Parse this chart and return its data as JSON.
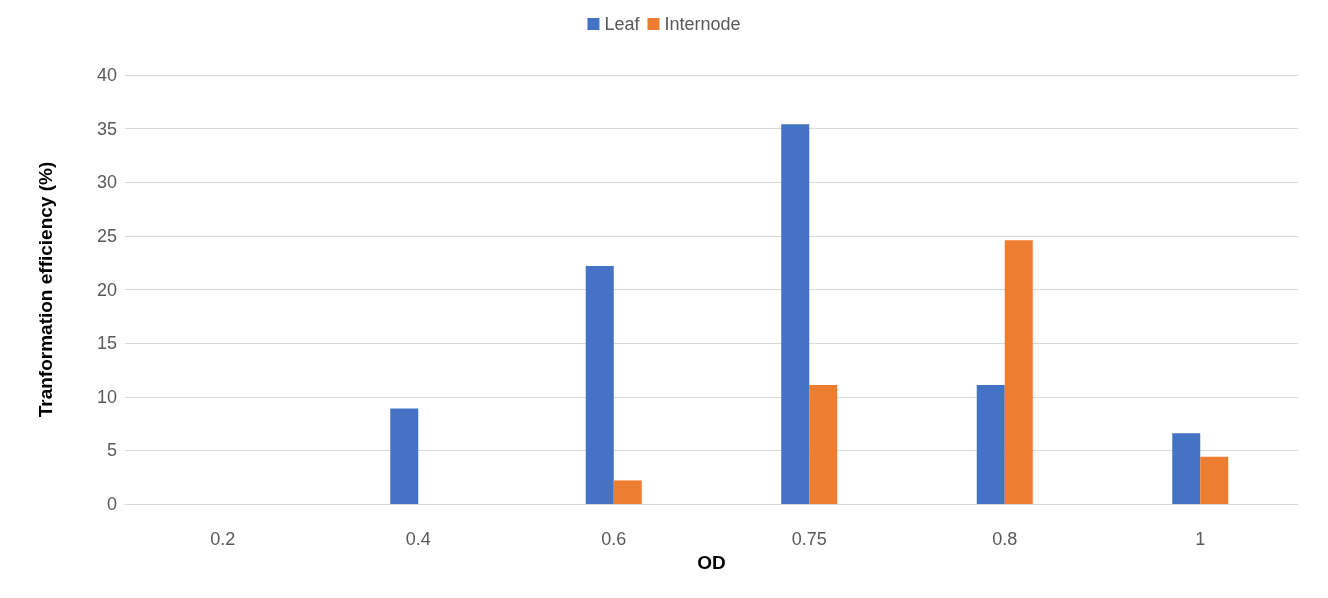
{
  "chart_data": {
    "type": "bar",
    "xlabel": "OD",
    "ylabel": "Tranformation efficiency (%)",
    "categories": [
      "0.2",
      "0.4",
      "0.6",
      "0.75",
      "0.8",
      "1"
    ],
    "series": [
      {
        "name": "Leaf",
        "color": "#4472c4",
        "values": [
          0,
          8.9,
          22.2,
          35.4,
          11.1,
          6.6
        ]
      },
      {
        "name": "Internode",
        "color": "#ed7d31",
        "values": [
          0,
          0,
          2.2,
          11.1,
          24.6,
          4.4
        ]
      }
    ],
    "ylim": [
      0,
      40
    ],
    "yticks": [
      0,
      5,
      10,
      15,
      20,
      25,
      30,
      35,
      40
    ],
    "grid": "y",
    "legend": "top"
  }
}
